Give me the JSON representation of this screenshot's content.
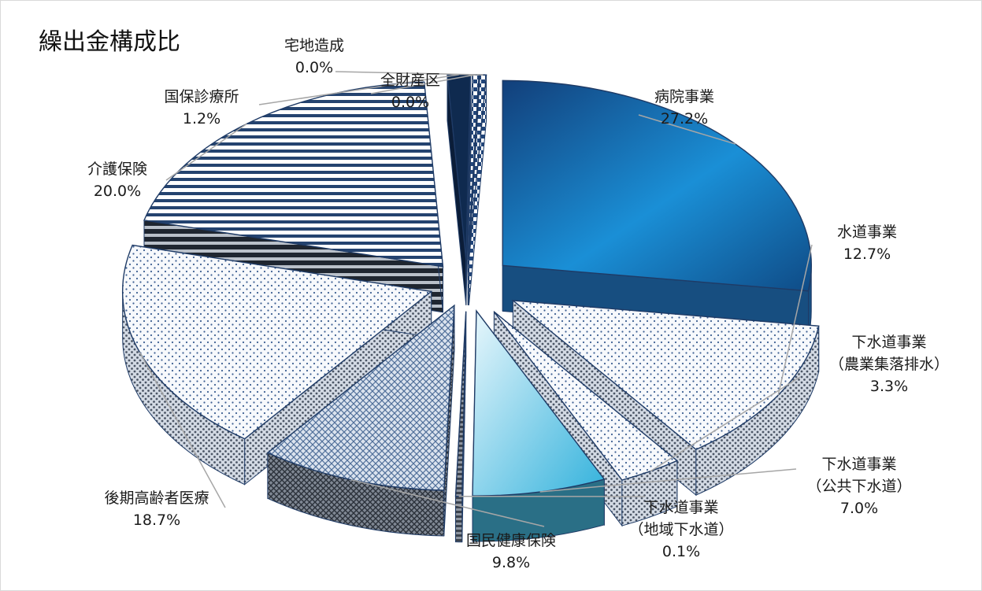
{
  "chart_data": {
    "type": "pie",
    "title": "繰出金構成比",
    "categories": [
      "病院事業",
      "水道事業",
      "下水道事業（農業集落排水）",
      "下水道事業（公共下水道）",
      "下水道事業（地域下水道）",
      "国民健康保険",
      "後期高齢者医療",
      "介護保険",
      "国保診療所",
      "全財産区",
      "宅地造成"
    ],
    "values": [
      27.2,
      12.7,
      3.3,
      7.0,
      0.1,
      9.8,
      18.7,
      20.0,
      1.2,
      0.0,
      0.0
    ],
    "slices": [
      {
        "name": "病院事業",
        "lines": [
          "病院事業"
        ],
        "value_label": "27.2%",
        "color": "#1e6fb3"
      },
      {
        "name": "水道事業",
        "lines": [
          "水道事業"
        ],
        "value_label": "12.7%",
        "color": "#f1f5f9"
      },
      {
        "name": "下水道事業（農業集落排水）",
        "lines": [
          "下水道事業",
          "（農業集落排水）"
        ],
        "value_label": "3.3%",
        "color": "#f1f5f9"
      },
      {
        "name": "下水道事業（公共下水道）",
        "lines": [
          "下水道事業",
          "（公共下水道）"
        ],
        "value_label": "7.0%",
        "color": "#9ed8ee"
      },
      {
        "name": "下水道事業（地域下水道）",
        "lines": [
          "下水道事業",
          "（地域下水道）"
        ],
        "value_label": "0.1%",
        "color": "#4a4a4a"
      },
      {
        "name": "国民健康保険",
        "lines": [
          "国民健康保険"
        ],
        "value_label": "9.8%",
        "color": "#8ea6c8"
      },
      {
        "name": "後期高齢者医療",
        "lines": [
          "後期高齢者医療"
        ],
        "value_label": "18.7%",
        "color": "#f4f6f9"
      },
      {
        "name": "介護保険",
        "lines": [
          "介護保険"
        ],
        "value_label": "20.0%",
        "color": "#dde5f0"
      },
      {
        "name": "国保診療所",
        "lines": [
          "国保診療所"
        ],
        "value_label": "1.2%",
        "color": "#12325e"
      },
      {
        "name": "全財産区",
        "lines": [
          "全財産区"
        ],
        "value_label": "0.0%",
        "color": "#3a5f99"
      },
      {
        "name": "宅地造成",
        "lines": [
          "宅地造成"
        ],
        "value_label": "0.0%",
        "color": "#7f97bd"
      }
    ],
    "legend": "none"
  }
}
